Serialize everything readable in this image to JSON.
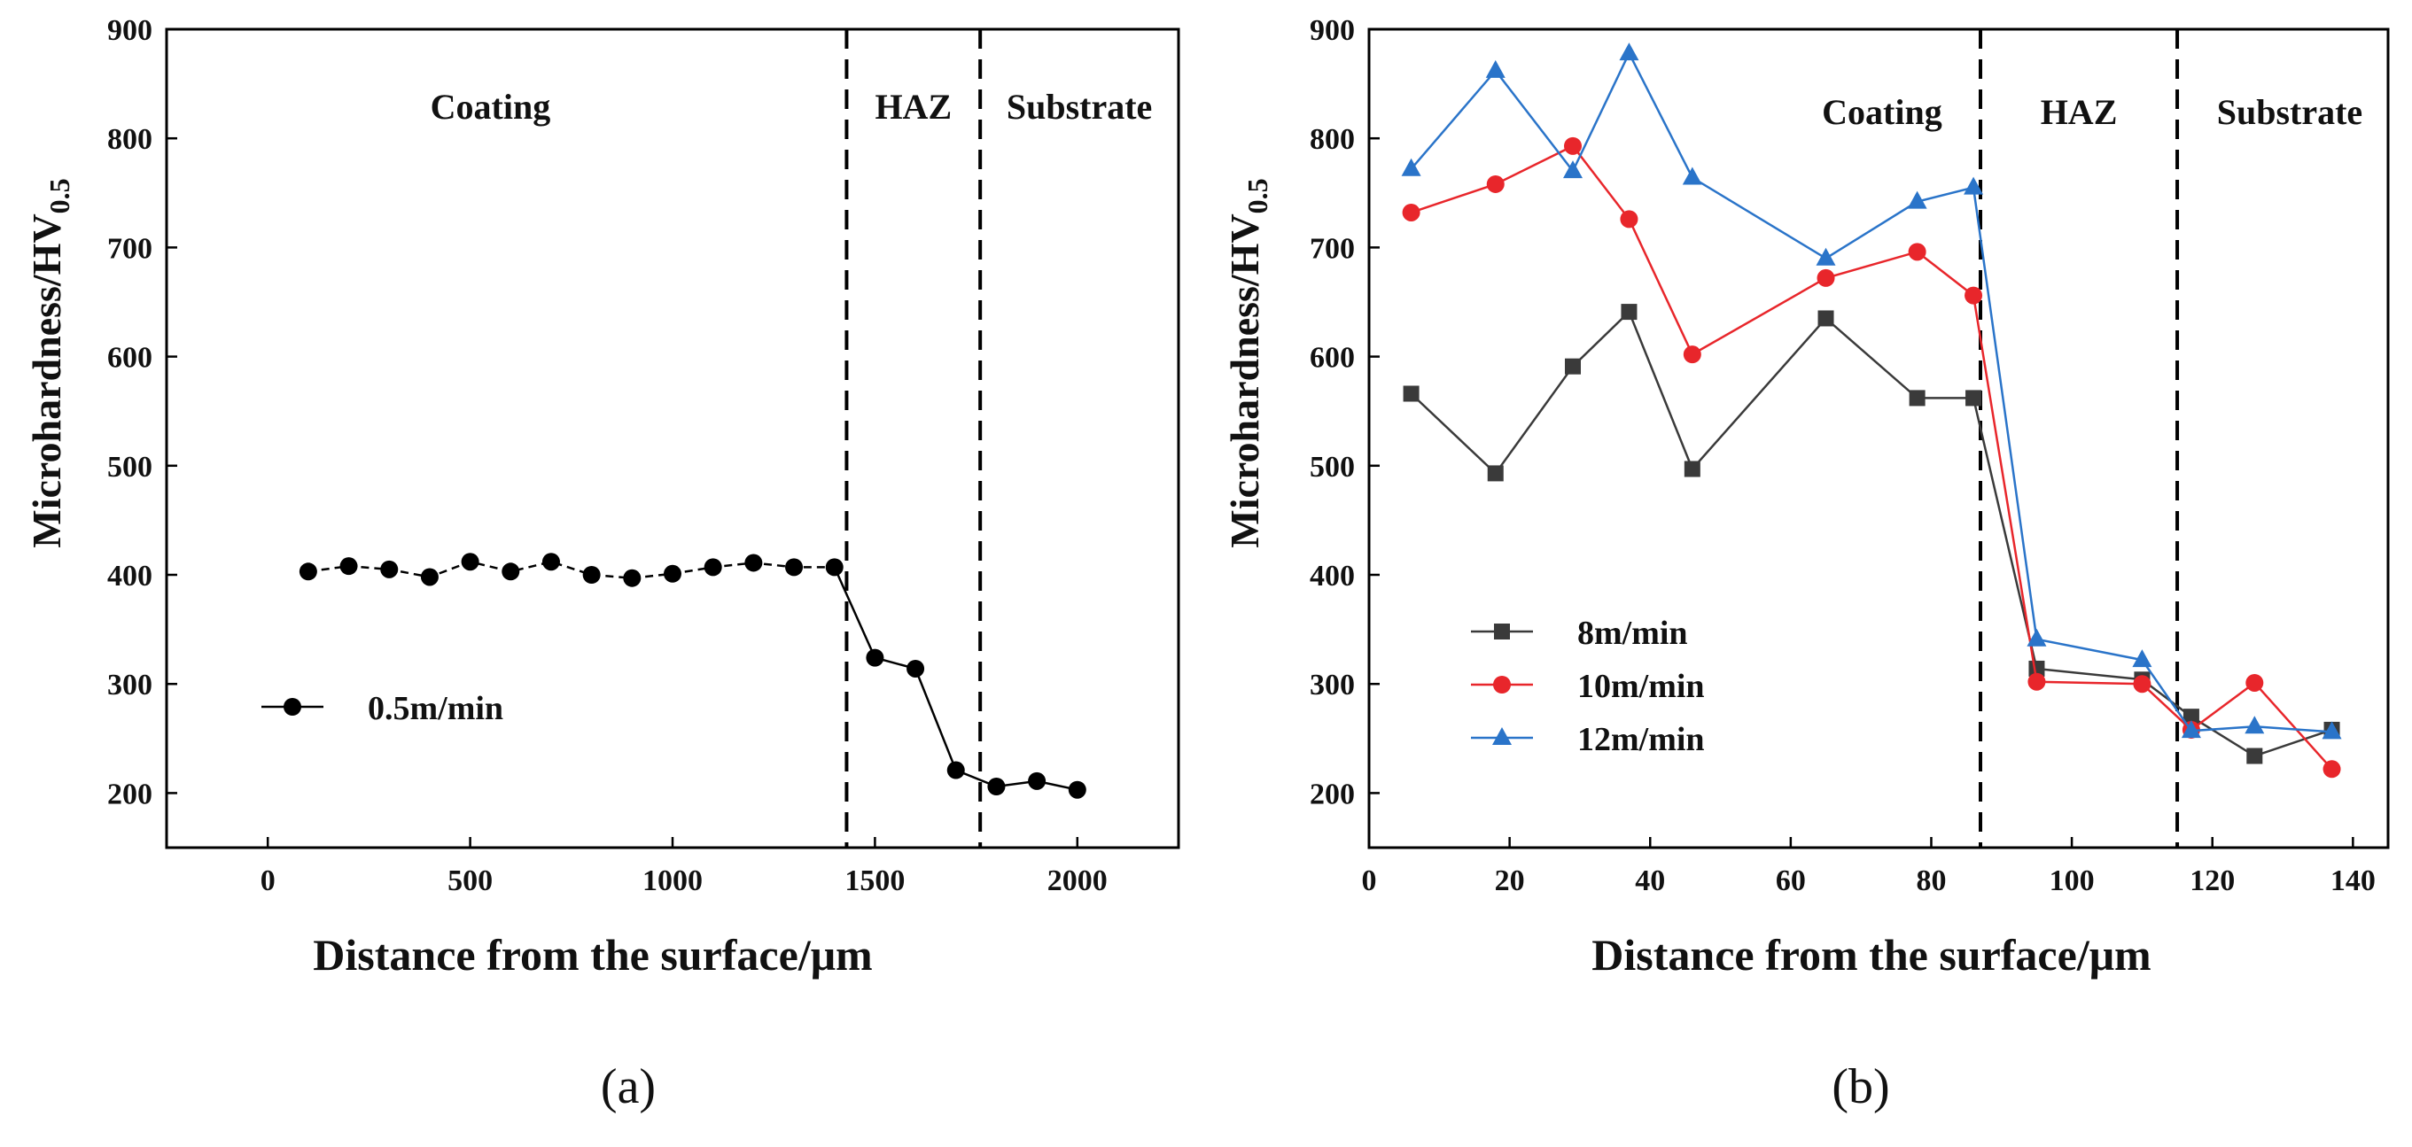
{
  "chart_data": [
    {
      "type": "line",
      "panel_label": "(a)",
      "xlabel": "Distance from the surface/μm",
      "ylabel_main": "Microhardness/HV",
      "ylabel_sub": "0.5",
      "xlim": [
        -250,
        2250
      ],
      "ylim": [
        150,
        900
      ],
      "xticks": [
        0,
        500,
        1000,
        1500,
        2000
      ],
      "yticks": [
        200,
        300,
        400,
        500,
        600,
        700,
        800,
        900
      ],
      "dividers": [
        1430,
        1760
      ],
      "regions": [
        {
          "label": "Coating",
          "x": 550,
          "y": 818
        },
        {
          "label": "HAZ",
          "x": 1595,
          "y": 818
        },
        {
          "label": "Substrate",
          "x": 2005,
          "y": 818
        }
      ],
      "legend_location": "lower-left",
      "series": [
        {
          "name": "0.5m/min",
          "color": "#000000",
          "marker": "circle",
          "dash_until_x": 1430,
          "x": [
            100,
            200,
            300,
            400,
            500,
            600,
            700,
            800,
            900,
            1000,
            1100,
            1200,
            1300,
            1400,
            1500,
            1600,
            1700,
            1800,
            1900,
            2000
          ],
          "y": [
            403,
            408,
            405,
            398,
            412,
            403,
            412,
            400,
            397,
            401,
            407,
            411,
            407,
            407,
            324,
            314,
            221,
            206,
            211,
            203
          ]
        }
      ]
    },
    {
      "type": "line",
      "panel_label": "(b)",
      "xlabel": "Distance from the surface/μm",
      "ylabel_main": "Microhardness/HV",
      "ylabel_sub": "0.5",
      "xlim": [
        0,
        145
      ],
      "ylim": [
        150,
        900
      ],
      "xticks": [
        0,
        20,
        40,
        60,
        80,
        100,
        120,
        140
      ],
      "yticks": [
        200,
        300,
        400,
        500,
        600,
        700,
        800,
        900
      ],
      "dividers": [
        87,
        115
      ],
      "regions": [
        {
          "label": "Coating",
          "x": 73,
          "y": 813
        },
        {
          "label": "HAZ",
          "x": 101,
          "y": 813
        },
        {
          "label": "Substrate",
          "x": 131,
          "y": 813
        }
      ],
      "legend_location": "lower-left",
      "series": [
        {
          "name": "8m/min",
          "color": "#3a3a3a",
          "marker": "square",
          "x": [
            6,
            18,
            29,
            37,
            46,
            65,
            78,
            86,
            95,
            110,
            117,
            126,
            137
          ],
          "y": [
            566,
            493,
            591,
            641,
            497,
            635,
            562,
            562,
            314,
            304,
            270,
            234,
            258
          ]
        },
        {
          "name": "10m/min",
          "color": "#e8262b",
          "marker": "circle",
          "x": [
            6,
            18,
            29,
            37,
            46,
            65,
            78,
            86,
            95,
            110,
            117,
            126,
            137
          ],
          "y": [
            732,
            758,
            793,
            726,
            602,
            672,
            696,
            656,
            302,
            300,
            258,
            301,
            222
          ]
        },
        {
          "name": "12m/min",
          "color": "#2a74c9",
          "marker": "triangle",
          "x": [
            6,
            18,
            29,
            37,
            46,
            65,
            78,
            86,
            95,
            110,
            117,
            126,
            137
          ],
          "y": [
            772,
            862,
            770,
            878,
            764,
            690,
            742,
            755,
            341,
            322,
            257,
            261,
            256
          ]
        }
      ]
    }
  ]
}
